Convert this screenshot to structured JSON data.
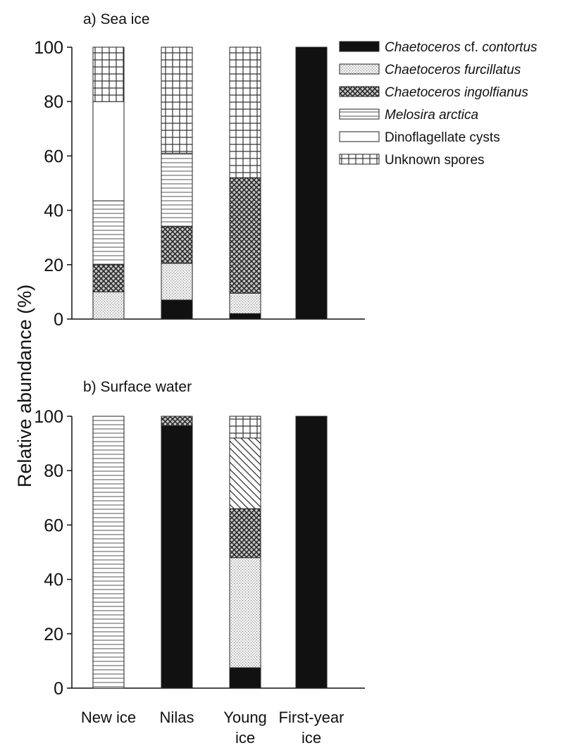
{
  "chart_data": [
    {
      "type": "bar",
      "stacked": true,
      "title": "a) Sea ice",
      "ylabel": "Relative abundance (%)",
      "ylim": [
        0,
        100
      ],
      "yticks": [
        "0",
        "20",
        "40",
        "60",
        "80",
        "100"
      ],
      "categories": [
        "New ice",
        "Nilas",
        "Young ice",
        "First-year ice"
      ],
      "series": [
        {
          "name": "Chaetoceros cf. contortus",
          "fill": "solid",
          "values": [
            0,
            7,
            2,
            100
          ]
        },
        {
          "name": "Chaetoceros furcillatus",
          "fill": "dots",
          "values": [
            10,
            13.5,
            7.5,
            0
          ]
        },
        {
          "name": "Chaetoceros ingolfianus",
          "fill": "crosshatch",
          "values": [
            10,
            13.5,
            42.5,
            0
          ]
        },
        {
          "name": "Melosira arctica",
          "fill": "horizontal",
          "values": [
            23.5,
            27,
            0,
            0
          ]
        },
        {
          "name": "Dinoflagellate cysts",
          "fill": "open",
          "values": [
            36.5,
            0,
            0,
            0
          ]
        },
        {
          "name": "Unknown spores",
          "fill": "grid",
          "values": [
            20,
            39,
            48,
            0
          ]
        }
      ]
    },
    {
      "type": "bar",
      "stacked": true,
      "title": "b) Surface water",
      "ylabel": "Relative abundance (%)",
      "ylim": [
        0,
        100
      ],
      "yticks": [
        "0",
        "20",
        "40",
        "60",
        "80",
        "100"
      ],
      "categories": [
        "New ice",
        "Nilas",
        "Young ice",
        "First-year ice"
      ],
      "series": [
        {
          "name": "Chaetoceros cf. contortus",
          "fill": "solid",
          "values": [
            0,
            96.5,
            7.5,
            100
          ]
        },
        {
          "name": "Chaetoceros furcillatus",
          "fill": "dots",
          "values": [
            0,
            0,
            40.5,
            0
          ]
        },
        {
          "name": "Chaetoceros ingolfianus",
          "fill": "crosshatch",
          "values": [
            0,
            3.5,
            18,
            0
          ]
        },
        {
          "name": "Melosira arctica",
          "fill": "horizontal",
          "values": [
            100,
            0,
            0,
            0
          ]
        },
        {
          "name": "",
          "fill": "diagonal",
          "values": [
            0,
            0,
            26,
            0
          ]
        },
        {
          "name": "Unknown spores",
          "fill": "grid",
          "values": [
            0,
            0,
            8,
            0
          ]
        }
      ]
    }
  ],
  "legend": {
    "placement": "top-right",
    "items": [
      {
        "fill": "solid",
        "prefix": "Chaetoceros",
        "text": " cf. ",
        "suffix": "contortus"
      },
      {
        "fill": "dots",
        "prefix": "Chaetoceros furcillatus",
        "text": "",
        "suffix": ""
      },
      {
        "fill": "crosshatch",
        "prefix": "Chaetoceros ingolfianus",
        "text": "",
        "suffix": ""
      },
      {
        "fill": "horizontal",
        "prefix": "Melosira arctica",
        "text": "",
        "suffix": ""
      },
      {
        "fill": "open",
        "prefix": "",
        "text": "Dinoflagellate cysts",
        "suffix": ""
      },
      {
        "fill": "grid",
        "prefix": "",
        "text": "Unknown spores",
        "suffix": ""
      }
    ]
  },
  "x_category_labels": [
    {
      "line1": "New ice",
      "line2": ""
    },
    {
      "line1": "Nilas",
      "line2": ""
    },
    {
      "line1": "Young",
      "line2": "ice"
    },
    {
      "line1": "First-year",
      "line2": "ice"
    }
  ]
}
